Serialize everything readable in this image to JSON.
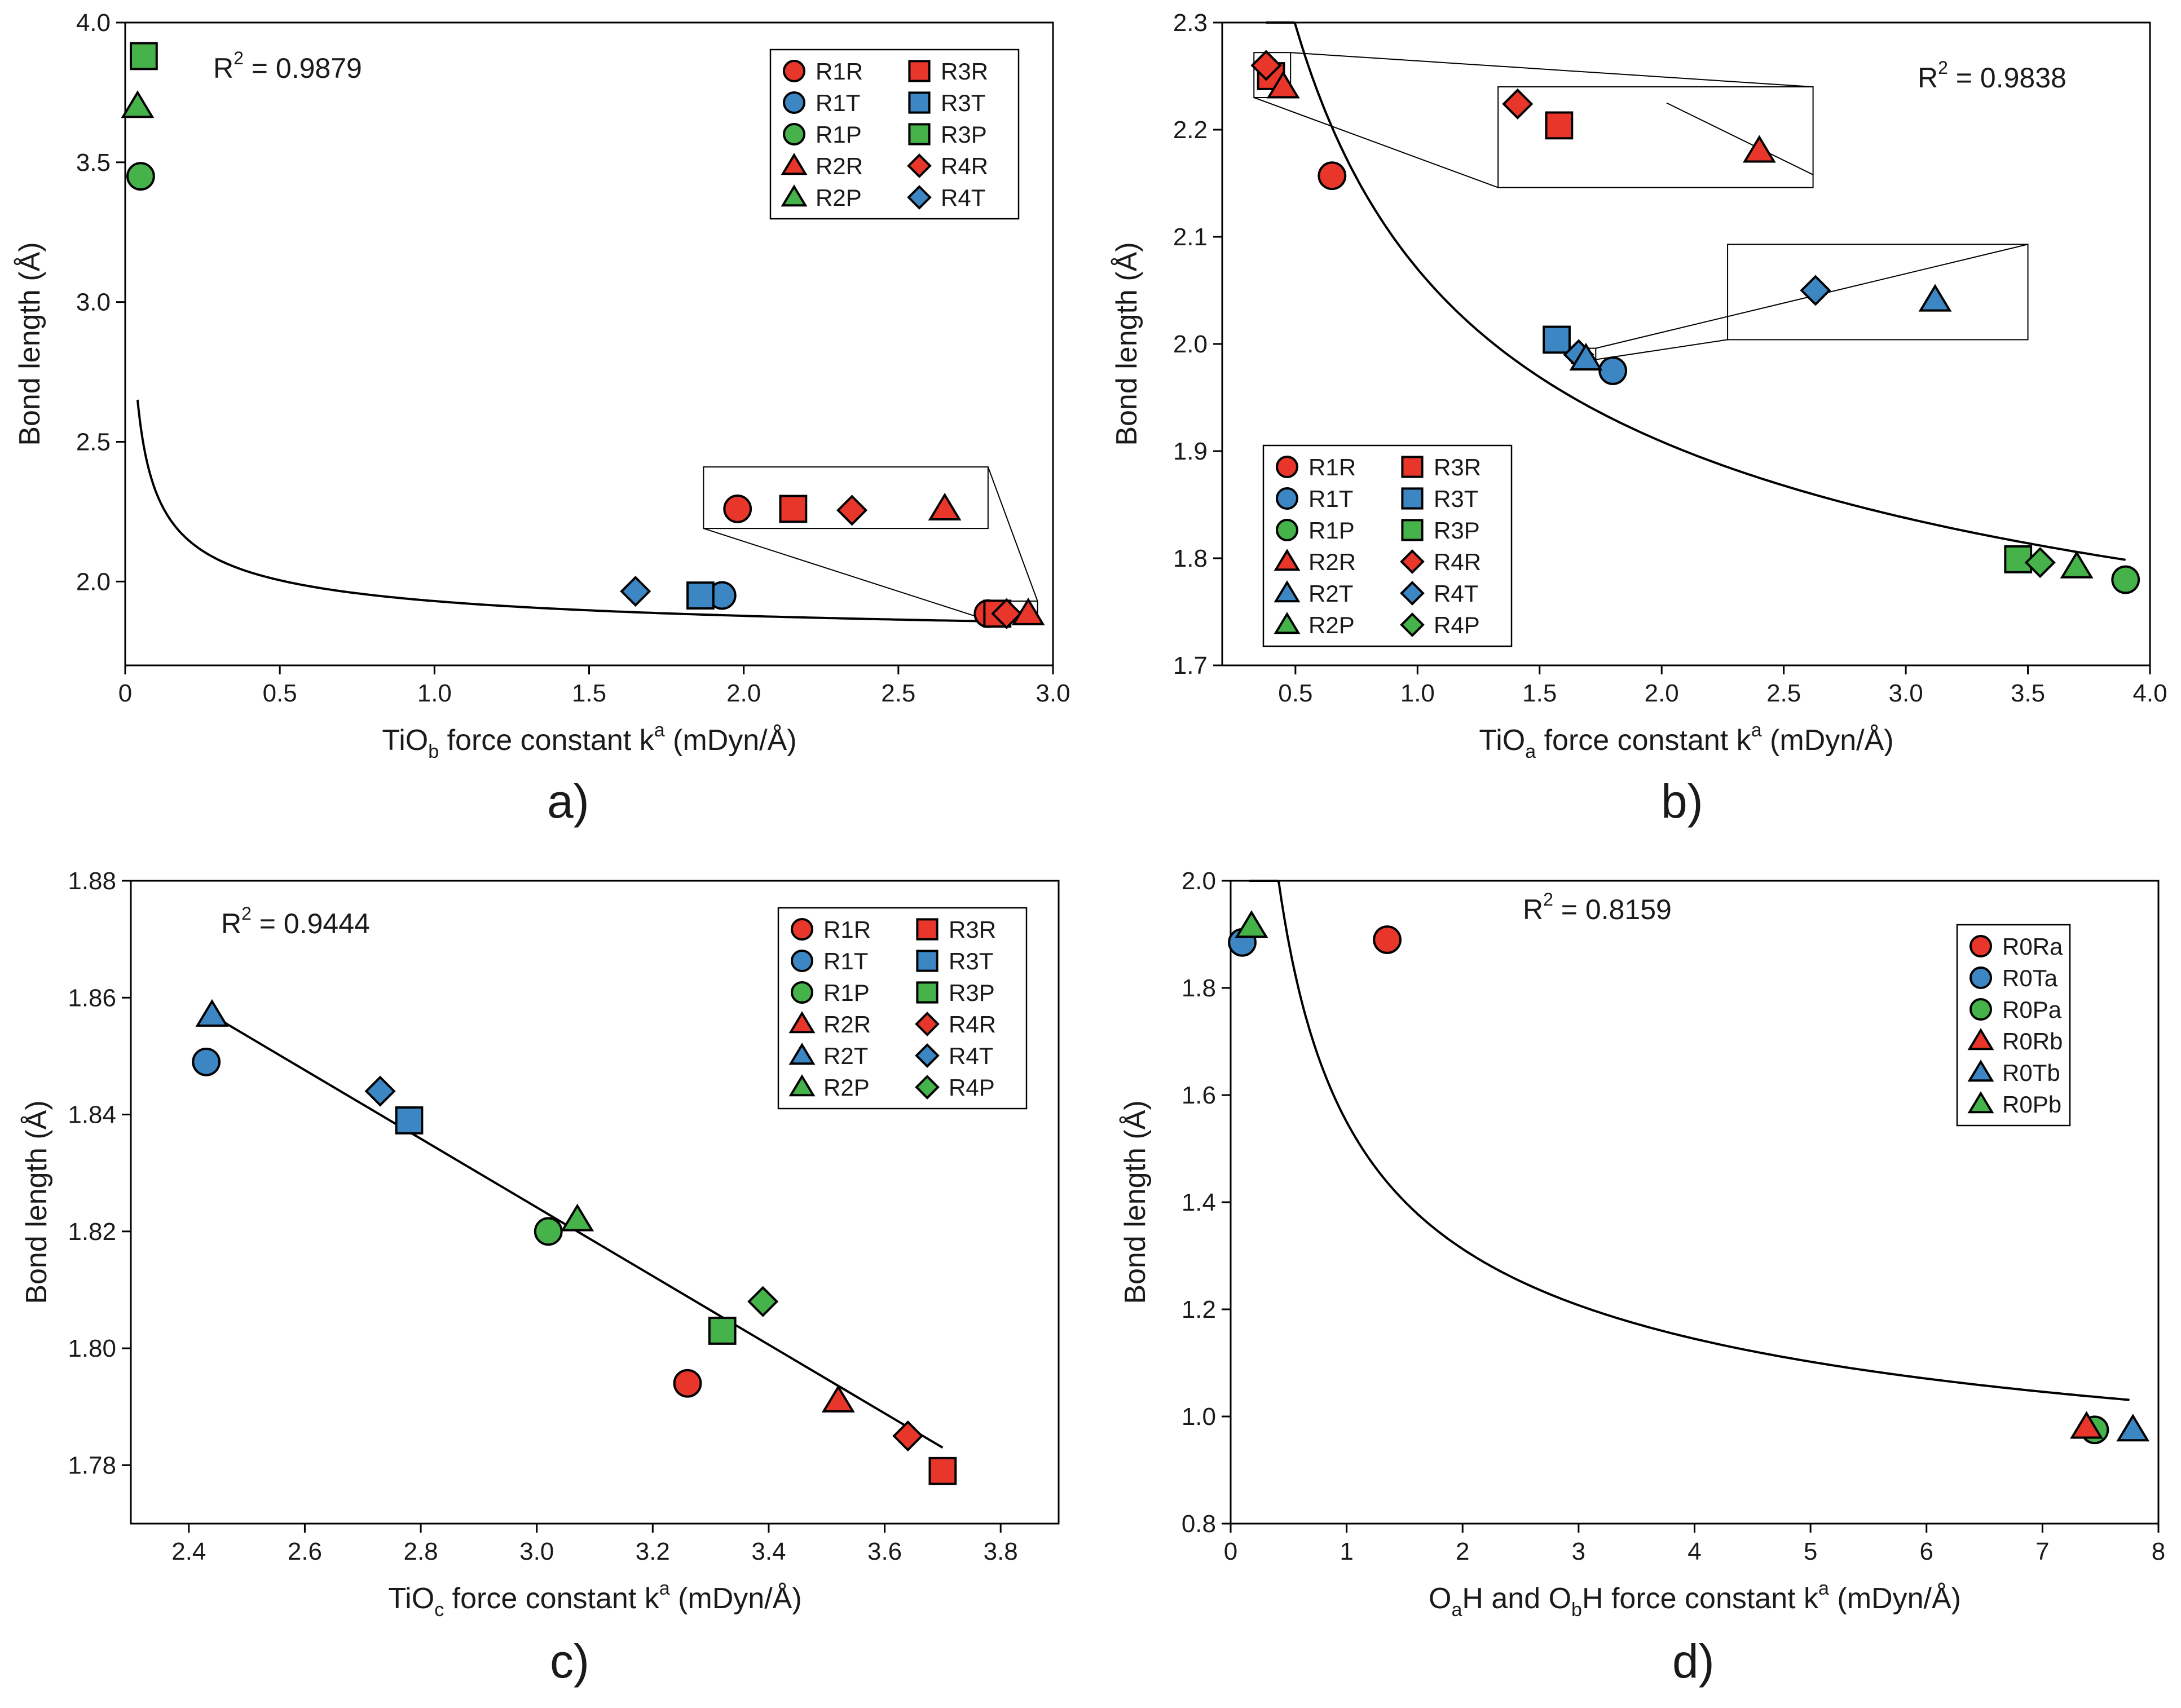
{
  "colors": {
    "R": "#e8372a",
    "T": "#3d86c4",
    "P": "#46b24a",
    "Ra": "#e8372a",
    "Ta": "#3d86c4",
    "Pa": "#46b24a",
    "Rb": "#e8372a",
    "Tb": "#3d86c4",
    "Pb": "#46b24a"
  },
  "chart_data": [
    {
      "id": "a",
      "type": "scatter",
      "panel_label": "a)",
      "r2_label": "R",
      "r2_value": " = 0.9879",
      "xlabel": {
        "pre": "TiO",
        "sub": "b",
        "mid": " force constant k",
        "sup": "a",
        "post": " (mDyn/Å)"
      },
      "ylabel": "Bond length (Å)",
      "xlim": [
        0,
        3.0
      ],
      "ylim": [
        1.7,
        4.0
      ],
      "xticks": [
        0,
        0.5,
        1.0,
        1.5,
        2.0,
        2.5,
        3.0
      ],
      "xtick_labels": [
        "0",
        "0.5",
        "1.0",
        "1.5",
        "2.0",
        "2.5",
        "3.0"
      ],
      "yticks": [
        2.0,
        2.5,
        3.0,
        3.5,
        4.0
      ],
      "ytick_labels": [
        "2.0",
        "2.5",
        "3.0",
        "3.5",
        "4.0"
      ],
      "legend_position": "top-right",
      "legend": [
        {
          "label": "R1R",
          "shape": "circle",
          "color": "R"
        },
        {
          "label": "R3R",
          "shape": "square",
          "color": "R"
        },
        {
          "label": "R1T",
          "shape": "circle",
          "color": "T"
        },
        {
          "label": "R3T",
          "shape": "square",
          "color": "T"
        },
        {
          "label": "R1P",
          "shape": "circle",
          "color": "P"
        },
        {
          "label": "R3P",
          "shape": "square",
          "color": "P"
        },
        {
          "label": "R2R",
          "shape": "triangle",
          "color": "R"
        },
        {
          "label": "R4R",
          "shape": "diamond",
          "color": "R"
        },
        {
          "label": "R2P",
          "shape": "triangle",
          "color": "P"
        },
        {
          "label": "R4T",
          "shape": "diamond",
          "color": "T"
        }
      ],
      "points": [
        {
          "name": "R1R",
          "shape": "circle",
          "color": "R",
          "x": 2.79,
          "y": 1.885
        },
        {
          "name": "R3R",
          "shape": "square",
          "color": "R",
          "x": 2.82,
          "y": 1.885
        },
        {
          "name": "R4R",
          "shape": "diamond",
          "color": "R",
          "x": 2.85,
          "y": 1.885
        },
        {
          "name": "R2R",
          "shape": "triangle",
          "color": "R",
          "x": 2.92,
          "y": 1.885
        },
        {
          "name": "R1T",
          "shape": "circle",
          "color": "T",
          "x": 1.93,
          "y": 1.95
        },
        {
          "name": "R3T",
          "shape": "square",
          "color": "T",
          "x": 1.86,
          "y": 1.95
        },
        {
          "name": "R4T",
          "shape": "diamond",
          "color": "T",
          "x": 1.65,
          "y": 1.965
        },
        {
          "name": "R1P",
          "shape": "circle",
          "color": "P",
          "x": 0.05,
          "y": 3.45
        },
        {
          "name": "R2P",
          "shape": "triangle",
          "color": "P",
          "x": 0.04,
          "y": 3.7
        },
        {
          "name": "R3P",
          "shape": "square",
          "color": "P",
          "x": 0.06,
          "y": 3.88
        }
      ],
      "fit": {
        "a": 1.75,
        "b": 0.18,
        "p": 0.5,
        "xmin": 0.04,
        "xmax": 2.93
      },
      "zoom_box": {
        "source_x": [
          2.78,
          2.95
        ],
        "source_y": [
          1.865,
          1.93
        ],
        "x": [
          1.87,
          2.79
        ],
        "y": [
          2.19,
          2.41
        ],
        "points": [
          {
            "name": "R1R",
            "shape": "circle",
            "color": "R",
            "x": 1.98,
            "y": 2.26
          },
          {
            "name": "R3R",
            "shape": "square",
            "color": "R",
            "x": 2.16,
            "y": 2.26
          },
          {
            "name": "R4R",
            "shape": "diamond",
            "color": "R",
            "x": 2.35,
            "y": 2.255
          },
          {
            "name": "R2R",
            "shape": "triangle",
            "color": "R",
            "x": 2.65,
            "y": 2.26
          }
        ]
      }
    },
    {
      "id": "b",
      "type": "scatter",
      "panel_label": "b)",
      "r2_label": "R",
      "r2_value": " = 0.9838",
      "xlabel": {
        "pre": "TiO",
        "sub": "a",
        "mid": " force constant k",
        "sup": "a",
        "post": " (mDyn/Å)"
      },
      "ylabel": "Bond length (Å)",
      "xlim": [
        0.2,
        4.0
      ],
      "ylim": [
        1.7,
        2.3
      ],
      "xticks": [
        0.5,
        1.0,
        1.5,
        2.0,
        2.5,
        3.0,
        3.5,
        4.0
      ],
      "xtick_labels": [
        "0.5",
        "1.0",
        "1.5",
        "2.0",
        "2.5",
        "3.0",
        "3.5",
        "4.0"
      ],
      "yticks": [
        1.7,
        1.8,
        1.9,
        2.0,
        2.1,
        2.2,
        2.3
      ],
      "ytick_labels": [
        "1.7",
        "1.8",
        "1.9",
        "2.0",
        "2.1",
        "2.2",
        "2.3"
      ],
      "legend_position": "bottom-left",
      "legend": [
        {
          "label": "R1R",
          "shape": "circle",
          "color": "R"
        },
        {
          "label": "R3R",
          "shape": "square",
          "color": "R"
        },
        {
          "label": "R1T",
          "shape": "circle",
          "color": "T"
        },
        {
          "label": "R3T",
          "shape": "square",
          "color": "T"
        },
        {
          "label": "R1P",
          "shape": "circle",
          "color": "P"
        },
        {
          "label": "R3P",
          "shape": "square",
          "color": "P"
        },
        {
          "label": "R2R",
          "shape": "triangle",
          "color": "R"
        },
        {
          "label": "R4R",
          "shape": "diamond",
          "color": "R"
        },
        {
          "label": "R2T",
          "shape": "triangle",
          "color": "T"
        },
        {
          "label": "R4T",
          "shape": "diamond",
          "color": "T"
        },
        {
          "label": "R2P",
          "shape": "triangle",
          "color": "P"
        },
        {
          "label": "R4P",
          "shape": "diamond",
          "color": "P"
        }
      ],
      "points": [
        {
          "name": "R1R",
          "shape": "circle",
          "color": "R",
          "x": 0.65,
          "y": 2.157
        },
        {
          "name": "R3R",
          "shape": "square",
          "color": "R",
          "x": 0.4,
          "y": 2.25
        },
        {
          "name": "R4R",
          "shape": "diamond",
          "color": "R",
          "x": 0.38,
          "y": 2.26
        },
        {
          "name": "R2R",
          "shape": "triangle",
          "color": "R",
          "x": 0.45,
          "y": 2.24
        },
        {
          "name": "R1T",
          "shape": "circle",
          "color": "T",
          "x": 1.8,
          "y": 1.975
        },
        {
          "name": "R3T",
          "shape": "square",
          "color": "T",
          "x": 1.57,
          "y": 2.004
        },
        {
          "name": "R4T",
          "shape": "diamond",
          "color": "T",
          "x": 1.66,
          "y": 1.99
        },
        {
          "name": "R2T",
          "shape": "triangle",
          "color": "T",
          "x": 1.69,
          "y": 1.986
        },
        {
          "name": "R1P",
          "shape": "circle",
          "color": "P",
          "x": 3.9,
          "y": 1.78
        },
        {
          "name": "R3P",
          "shape": "square",
          "color": "P",
          "x": 3.46,
          "y": 1.799
        },
        {
          "name": "R4P",
          "shape": "diamond",
          "color": "P",
          "x": 3.55,
          "y": 1.796
        },
        {
          "name": "R2P",
          "shape": "triangle",
          "color": "P",
          "x": 3.7,
          "y": 1.792
        }
      ],
      "fit": {
        "a": 1.52,
        "b": 0.55,
        "p": 0.5,
        "xmin": 0.38,
        "xmax": 3.9
      },
      "zoom_boxes": [
        {
          "source_x": [
            0.33,
            0.48
          ],
          "source_y": [
            2.23,
            2.272
          ],
          "x": [
            1.33,
            2.62
          ],
          "y": [
            2.146,
            2.24
          ],
          "points": [
            {
              "name": "R4R",
              "shape": "diamond",
              "color": "R",
              "x": 1.41,
              "y": 2.224
            },
            {
              "name": "R3R",
              "shape": "square",
              "color": "R",
              "x": 1.58,
              "y": 2.204
            },
            {
              "name": "R2R",
              "shape": "triangle",
              "color": "R",
              "x": 2.4,
              "y": 2.18
            }
          ]
        },
        {
          "source_x": [
            1.63,
            1.73
          ],
          "source_y": [
            1.982,
            1.996
          ],
          "x": [
            2.27,
            3.5
          ],
          "y": [
            2.004,
            2.093
          ],
          "points": [
            {
              "name": "R4T",
              "shape": "diamond",
              "color": "T",
              "x": 2.63,
              "y": 2.05
            },
            {
              "name": "R2T",
              "shape": "triangle",
              "color": "T",
              "x": 3.12,
              "y": 2.041
            }
          ]
        }
      ]
    },
    {
      "id": "c",
      "type": "scatter",
      "panel_label": "c)",
      "r2_label": "R",
      "r2_value": " = 0.9444",
      "xlabel": {
        "pre": "TiO",
        "sub": "c",
        "mid": " force constant k",
        "sup": "a",
        "post": " (mDyn/Å)"
      },
      "ylabel": "Bond length (Å)",
      "xlim": [
        2.3,
        3.9
      ],
      "ylim": [
        1.77,
        1.88
      ],
      "xticks": [
        2.4,
        2.6,
        2.8,
        3.0,
        3.2,
        3.4,
        3.6,
        3.8
      ],
      "xtick_labels": [
        "2.4",
        "2.6",
        "2.8",
        "3.0",
        "3.2",
        "3.4",
        "3.6",
        "3.8"
      ],
      "yticks": [
        1.78,
        1.8,
        1.82,
        1.84,
        1.86,
        1.88
      ],
      "ytick_labels": [
        "1.78",
        "1.80",
        "1.82",
        "1.84",
        "1.86",
        "1.88"
      ],
      "legend_position": "top-right",
      "legend": [
        {
          "label": "R1R",
          "shape": "circle",
          "color": "R"
        },
        {
          "label": "R3R",
          "shape": "square",
          "color": "R"
        },
        {
          "label": "R1T",
          "shape": "circle",
          "color": "T"
        },
        {
          "label": "R3T",
          "shape": "square",
          "color": "T"
        },
        {
          "label": "R1P",
          "shape": "circle",
          "color": "P"
        },
        {
          "label": "R3P",
          "shape": "square",
          "color": "P"
        },
        {
          "label": "R2R",
          "shape": "triangle",
          "color": "R"
        },
        {
          "label": "R4R",
          "shape": "diamond",
          "color": "R"
        },
        {
          "label": "R2T",
          "shape": "triangle",
          "color": "T"
        },
        {
          "label": "R4T",
          "shape": "diamond",
          "color": "T"
        },
        {
          "label": "R2P",
          "shape": "triangle",
          "color": "P"
        },
        {
          "label": "R4P",
          "shape": "diamond",
          "color": "P"
        }
      ],
      "points": [
        {
          "name": "R1R",
          "shape": "circle",
          "color": "R",
          "x": 3.26,
          "y": 1.794
        },
        {
          "name": "R2R",
          "shape": "triangle",
          "color": "R",
          "x": 3.52,
          "y": 1.791
        },
        {
          "name": "R3R",
          "shape": "square",
          "color": "R",
          "x": 3.7,
          "y": 1.779
        },
        {
          "name": "R4R",
          "shape": "diamond",
          "color": "R",
          "x": 3.64,
          "y": 1.785
        },
        {
          "name": "R1T",
          "shape": "circle",
          "color": "T",
          "x": 2.43,
          "y": 1.849
        },
        {
          "name": "R2T",
          "shape": "triangle",
          "color": "T",
          "x": 2.44,
          "y": 1.857
        },
        {
          "name": "R3T",
          "shape": "square",
          "color": "T",
          "x": 2.78,
          "y": 1.839
        },
        {
          "name": "R4T",
          "shape": "diamond",
          "color": "T",
          "x": 2.73,
          "y": 1.844
        },
        {
          "name": "R1P",
          "shape": "circle",
          "color": "P",
          "x": 3.02,
          "y": 1.82
        },
        {
          "name": "R2P",
          "shape": "triangle",
          "color": "P",
          "x": 3.07,
          "y": 1.822
        },
        {
          "name": "R3P",
          "shape": "square",
          "color": "P",
          "x": 3.32,
          "y": 1.803
        },
        {
          "name": "R4P",
          "shape": "diamond",
          "color": "P",
          "x": 3.39,
          "y": 1.808
        }
      ],
      "fit": {
        "linear": true,
        "x": [
          2.44,
          3.7
        ],
        "y": [
          1.857,
          1.783
        ]
      }
    },
    {
      "id": "d",
      "type": "scatter",
      "panel_label": "d)",
      "r2_label": "R",
      "r2_value": " = 0.8159",
      "xlabel": {
        "pre": "O",
        "sub": "a",
        "mid": "H and O",
        "sub2": "b",
        "mid2": "H force constant k",
        "sup": "a",
        "post": " (mDyn/Å)"
      },
      "ylabel": "Bond length (Å)",
      "xlim": [
        0,
        8
      ],
      "ylim": [
        0.8,
        2.0
      ],
      "xticks": [
        0,
        1,
        2,
        3,
        4,
        5,
        6,
        7,
        8
      ],
      "xtick_labels": [
        "0",
        "1",
        "2",
        "3",
        "4",
        "5",
        "6",
        "7",
        "8"
      ],
      "yticks": [
        0.8,
        1.0,
        1.2,
        1.4,
        1.6,
        1.8,
        2.0
      ],
      "ytick_labels": [
        "0.8",
        "1.0",
        "1.2",
        "1.4",
        "1.6",
        "1.8",
        "2.0"
      ],
      "legend_position": "top-right",
      "legend": [
        {
          "label": "R0Ra",
          "shape": "circle",
          "color": "Ra"
        },
        {
          "label": "R0Ta",
          "shape": "circle",
          "color": "Ta"
        },
        {
          "label": "R0Pa",
          "shape": "circle",
          "color": "Pa"
        },
        {
          "label": "R0Rb",
          "shape": "triangle",
          "color": "Rb"
        },
        {
          "label": "R0Tb",
          "shape": "triangle",
          "color": "Tb"
        },
        {
          "label": "R0Pb",
          "shape": "triangle",
          "color": "Pb"
        }
      ],
      "points": [
        {
          "name": "R0Ra",
          "shape": "circle",
          "color": "Ra",
          "x": 1.35,
          "y": 1.89
        },
        {
          "name": "R0Ta",
          "shape": "circle",
          "color": "Ta",
          "x": 0.1,
          "y": 1.885
        },
        {
          "name": "R0Pa",
          "shape": "circle",
          "color": "Pa",
          "x": 7.45,
          "y": 0.975
        },
        {
          "name": "R0Rb",
          "shape": "triangle",
          "color": "Rb",
          "x": 7.38,
          "y": 0.98
        },
        {
          "name": "R0Tb",
          "shape": "triangle",
          "color": "Tb",
          "x": 7.78,
          "y": 0.975
        },
        {
          "name": "R0Pb",
          "shape": "triangle",
          "color": "Pb",
          "x": 0.18,
          "y": 1.915
        }
      ],
      "fit": {
        "a": 0.74,
        "b": 0.81,
        "p": 0.5,
        "xmin": 0.16,
        "xmax": 7.75
      }
    }
  ]
}
